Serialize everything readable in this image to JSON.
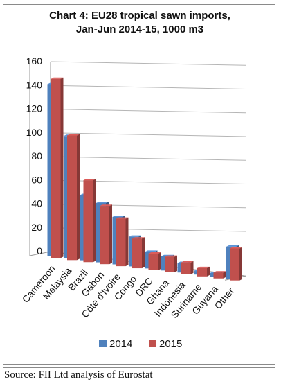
{
  "chart_data": {
    "type": "bar",
    "title": "Chart 4: EU28 tropical sawn imports,\nJan-Jun 2014-15, 1000 m3",
    "categories": [
      "Cameroon",
      "Malaysia",
      "Brazil",
      "Gabon",
      "Côte d'Ivoire",
      "Congo",
      "DRC",
      "Ghana",
      "Indonesia",
      "Suriname",
      "Guyana",
      "Other"
    ],
    "series": [
      {
        "name": "2014",
        "color": "#4f81bd",
        "values": [
          145,
          103,
          55,
          50,
          40,
          25,
          14,
          12,
          8,
          3,
          3,
          27
        ]
      },
      {
        "name": "2015",
        "color": "#c0504d",
        "values": [
          151,
          105,
          69,
          49,
          40,
          25,
          14,
          13,
          10,
          7,
          5,
          27
        ]
      }
    ],
    "yticks": [
      0,
      20,
      40,
      60,
      80,
      100,
      120,
      140,
      160
    ],
    "ylim": [
      0,
      160
    ],
    "grid": true,
    "legend": "bottom",
    "xlabel": "",
    "ylabel": ""
  },
  "source": "Source: FII Ltd analysis of Eurostat"
}
